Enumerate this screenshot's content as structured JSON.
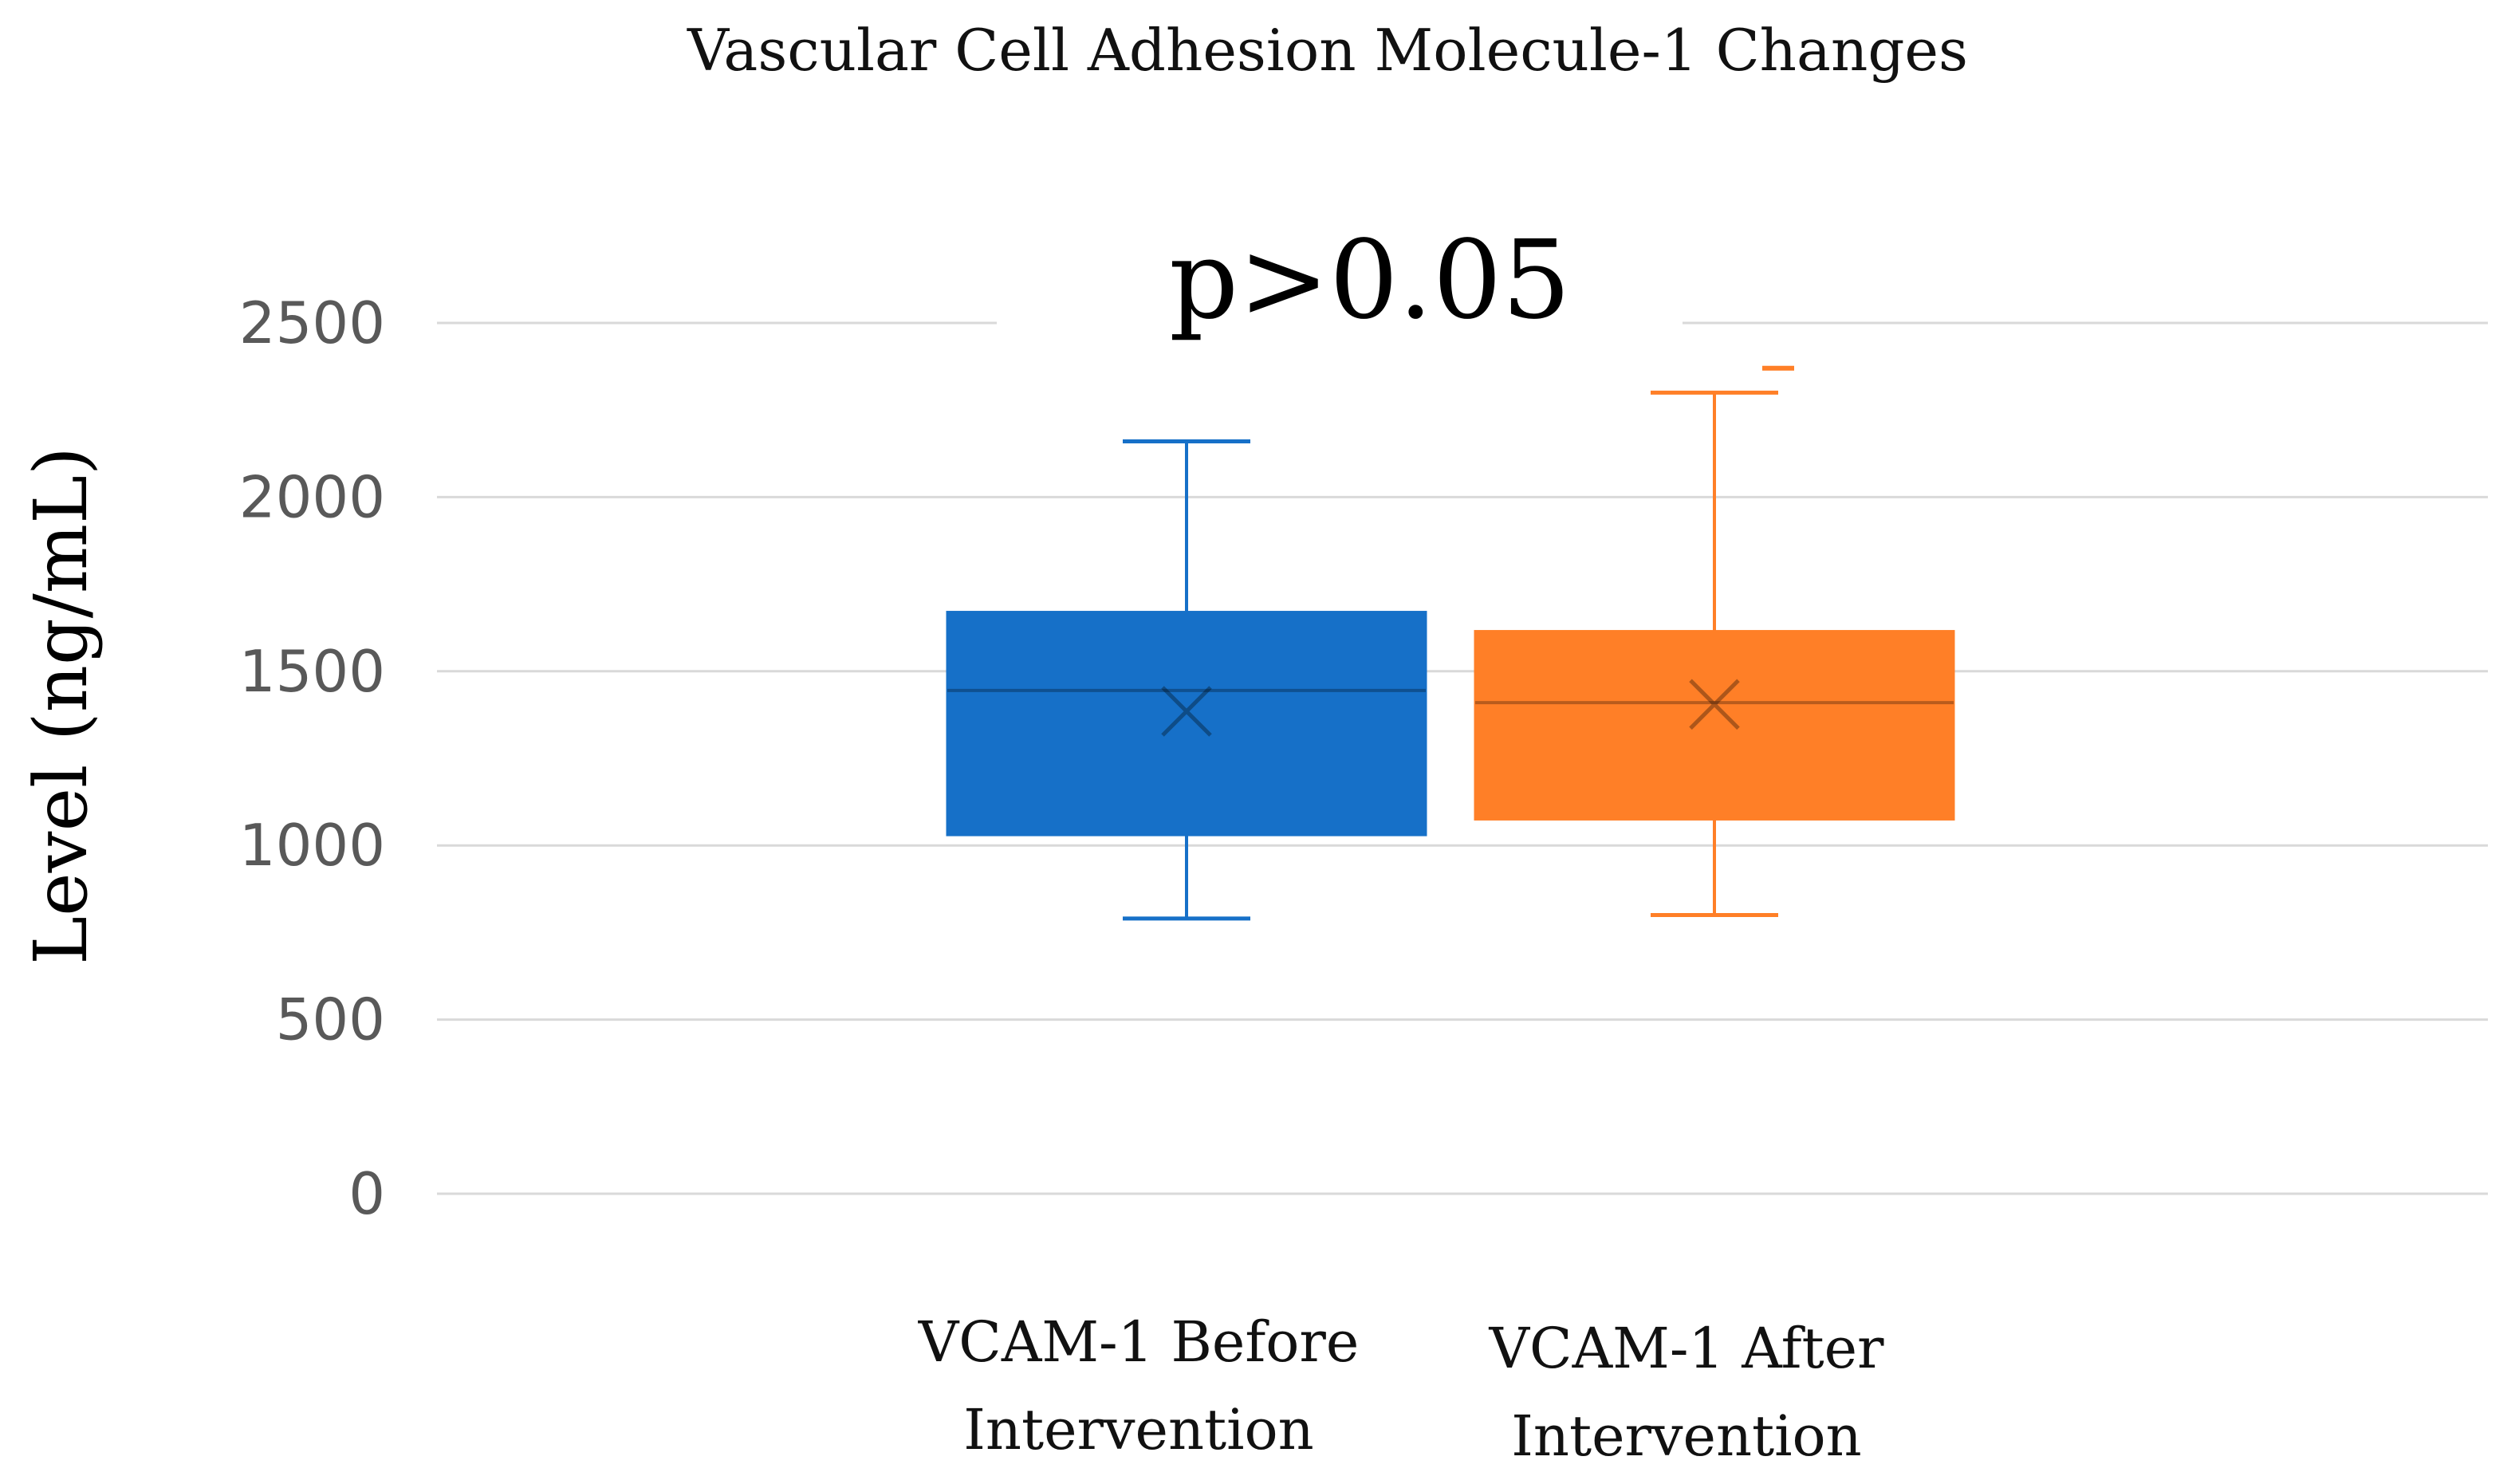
{
  "chart_data": {
    "type": "box",
    "title": "Vascular Cell Adhesion Molecule-1 Changes",
    "ylabel": "Level (ng/mL)",
    "xlabel": "",
    "ylim": [
      0,
      2500
    ],
    "yticks": [
      0,
      500,
      1000,
      1500,
      2000,
      2500
    ],
    "ytick_labels": [
      "0",
      "500",
      "1000",
      "1500",
      "2000",
      "2500"
    ],
    "grid": true,
    "annotation": "p>0.05",
    "series": [
      {
        "category_lines": [
          "VCAM-1 Before",
          "Intervention"
        ],
        "color": "#1670C8",
        "min": 790,
        "q1": 1030,
        "median": 1445,
        "q3": 1670,
        "max": 2160,
        "mean": 1385,
        "outliers": []
      },
      {
        "category_lines": [
          "VCAM-1 After",
          "Intervention"
        ],
        "color": "#FF7F27",
        "min": 800,
        "q1": 1075,
        "median": 1410,
        "q3": 1615,
        "max": 2300,
        "mean": 1405,
        "outliers": [
          2370
        ]
      }
    ]
  }
}
